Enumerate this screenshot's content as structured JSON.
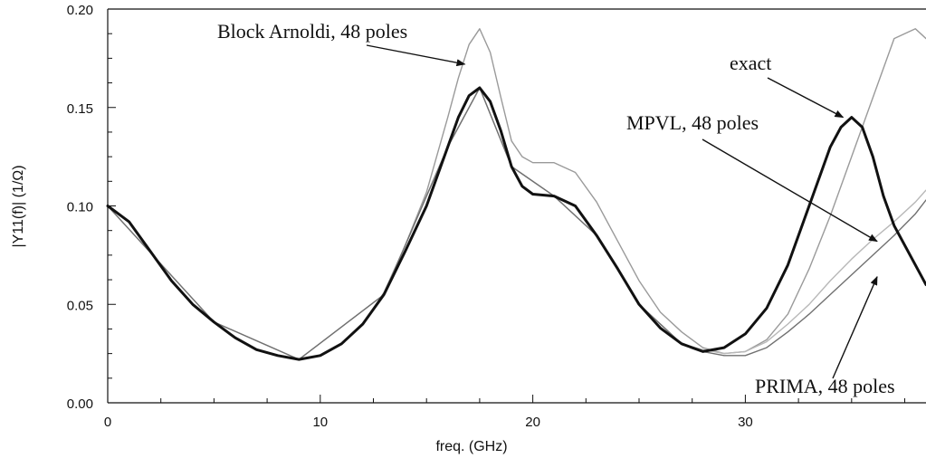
{
  "chart_data": {
    "type": "line",
    "title": "",
    "xlabel": "freq. (GHz)",
    "ylabel": "|Y11(f)| (1/Ω)",
    "xlim": [
      0,
      38.5
    ],
    "ylim": [
      0,
      0.2
    ],
    "xticks": [
      0,
      10,
      20,
      30
    ],
    "xtick_labels": [
      "0",
      "10",
      "20",
      "30"
    ],
    "yticks": [
      0,
      0.05,
      0.1,
      0.15,
      0.2
    ],
    "ytick_labels": [
      "0.00",
      "0.05",
      "0.10",
      "0.15",
      "0.20"
    ],
    "grid": false,
    "series": [
      {
        "color": "#111111",
        "style": "solid-thick",
        "x": [
          0,
          1,
          2,
          3,
          4,
          5,
          6,
          7,
          8,
          9,
          10,
          11,
          12,
          13,
          14,
          15,
          16,
          16.5,
          17,
          17.5,
          18,
          18.5,
          19,
          19.5,
          20,
          21,
          22,
          23,
          24,
          25,
          26,
          27,
          28,
          29,
          30,
          31,
          32,
          33,
          34,
          34.5,
          35,
          35.5,
          36,
          36.5,
          37,
          38,
          38.5
        ],
        "values": [
          0.1,
          0.092,
          0.077,
          0.062,
          0.05,
          0.041,
          0.033,
          0.027,
          0.024,
          0.022,
          0.024,
          0.03,
          0.04,
          0.055,
          0.077,
          0.1,
          0.13,
          0.145,
          0.156,
          0.16,
          0.153,
          0.138,
          0.12,
          0.11,
          0.106,
          0.105,
          0.1,
          0.085,
          0.068,
          0.05,
          0.038,
          0.03,
          0.026,
          0.028,
          0.035,
          0.048,
          0.07,
          0.1,
          0.13,
          0.14,
          0.145,
          0.14,
          0.125,
          0.105,
          0.09,
          0.07,
          0.06
        ]
      },
      {
        "color": "#9a9a9a",
        "style": "thin",
        "x": [
          0,
          1,
          2,
          3,
          4,
          5,
          6,
          7,
          8,
          9,
          10,
          11,
          12,
          13,
          14,
          15,
          16,
          16.5,
          17,
          17.5,
          18,
          18.5,
          19,
          19.5,
          20,
          21,
          22,
          23,
          24,
          25,
          26,
          27,
          28,
          29,
          30,
          31,
          32,
          33,
          34,
          35,
          36,
          37,
          38,
          38.5
        ],
        "values": [
          0.1,
          0.092,
          0.077,
          0.062,
          0.05,
          0.041,
          0.033,
          0.027,
          0.024,
          0.022,
          0.024,
          0.03,
          0.04,
          0.056,
          0.08,
          0.107,
          0.145,
          0.165,
          0.182,
          0.19,
          0.178,
          0.155,
          0.133,
          0.125,
          0.122,
          0.122,
          0.117,
          0.102,
          0.082,
          0.062,
          0.046,
          0.036,
          0.028,
          0.025,
          0.026,
          0.032,
          0.045,
          0.068,
          0.095,
          0.125,
          0.155,
          0.185,
          0.19,
          0.185
        ]
      },
      {
        "color": "#b8b8b8",
        "style": "thin",
        "x": [
          0,
          5,
          9,
          13,
          16,
          17.5,
          19,
          21,
          23,
          25,
          27,
          28,
          29,
          30,
          31,
          32,
          33,
          34,
          35,
          36,
          37,
          38,
          38.5
        ],
        "values": [
          0.1,
          0.041,
          0.022,
          0.055,
          0.13,
          0.16,
          0.12,
          0.105,
          0.085,
          0.05,
          0.03,
          0.027,
          0.025,
          0.026,
          0.031,
          0.04,
          0.05,
          0.062,
          0.073,
          0.083,
          0.092,
          0.102,
          0.108
        ]
      },
      {
        "color": "#707070",
        "style": "thin",
        "x": [
          0,
          5,
          9,
          13,
          16,
          17.5,
          19,
          21,
          23,
          25,
          27,
          28,
          29,
          30,
          31,
          32,
          33,
          34,
          35,
          36,
          37,
          38,
          38.5
        ],
        "values": [
          0.1,
          0.041,
          0.022,
          0.055,
          0.13,
          0.16,
          0.12,
          0.105,
          0.085,
          0.05,
          0.03,
          0.026,
          0.024,
          0.024,
          0.028,
          0.036,
          0.045,
          0.055,
          0.065,
          0.075,
          0.085,
          0.096,
          0.103
        ]
      }
    ],
    "annotations": [
      {
        "text": "Block Arnoldi, 48 poles",
        "target": [
          16.8,
          0.172
        ]
      },
      {
        "text": "exact",
        "target": [
          34.6,
          0.145
        ]
      },
      {
        "text": "MPVL, 48 poles",
        "target": [
          36.2,
          0.082
        ]
      },
      {
        "text": "PRIMA, 48 poles",
        "target": [
          36.2,
          0.064
        ]
      }
    ]
  }
}
